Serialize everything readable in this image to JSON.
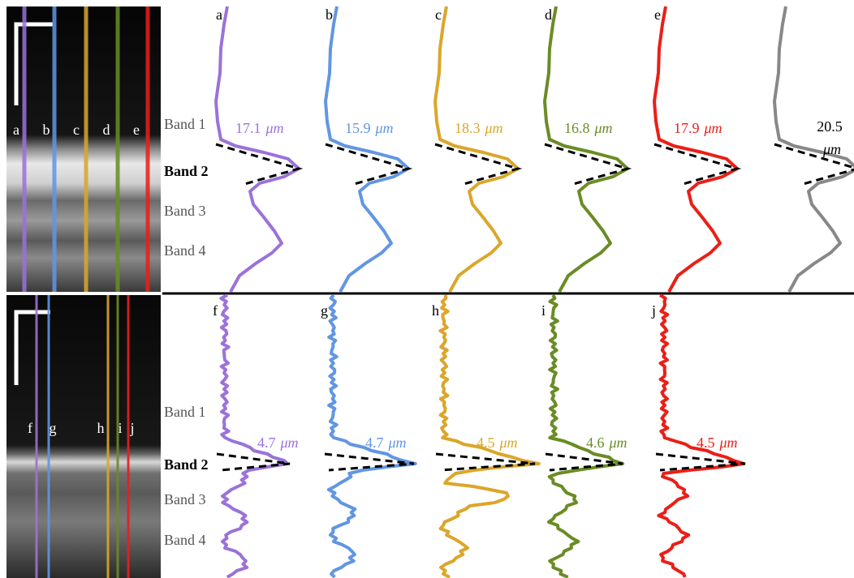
{
  "top": {
    "band_labels": [
      "Band 1",
      "Band 2",
      "Band 3",
      "Band 4"
    ],
    "image_labels": [
      "a",
      "b",
      "c",
      "d",
      "e"
    ],
    "profiles": [
      {
        "label": "a",
        "width": "17.1",
        "unit": "μm"
      },
      {
        "label": "b",
        "width": "15.9",
        "unit": "μm"
      },
      {
        "label": "c",
        "width": "18.3",
        "unit": "μm"
      },
      {
        "label": "d",
        "width": "16.8",
        "unit": "μm"
      },
      {
        "label": "e",
        "width": "17.9",
        "unit": "μm"
      },
      {
        "width": "20.5",
        "unit": "μm"
      }
    ]
  },
  "bottom": {
    "band_labels": [
      "Band 1",
      "Band 2",
      "Band 3",
      "Band 4"
    ],
    "image_labels": [
      "f",
      "g",
      "h",
      "i",
      "j"
    ],
    "profiles": [
      {
        "label": "f",
        "width": "4.7",
        "unit": "μm"
      },
      {
        "label": "g",
        "width": "4.7",
        "unit": "μm"
      },
      {
        "label": "h",
        "width": "4.5",
        "unit": "μm"
      },
      {
        "label": "i",
        "width": "4.6",
        "unit": "μm"
      },
      {
        "label": "j",
        "width": "4.5",
        "unit": "μm"
      }
    ]
  }
}
